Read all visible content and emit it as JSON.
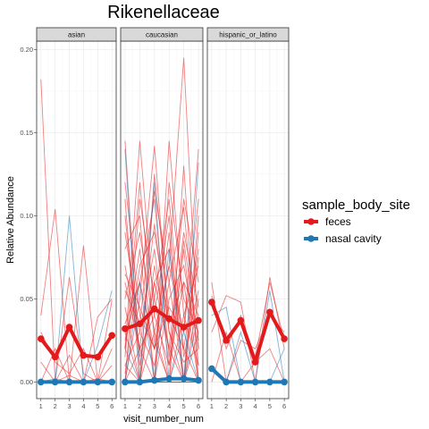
{
  "chart_data": {
    "type": "line",
    "title": "Rikenellaceae",
    "xlabel": "visit_number_num",
    "ylabel": "Relative Abundance",
    "x": [
      1,
      2,
      3,
      4,
      5,
      6
    ],
    "ylim": [
      -0.01,
      0.205
    ],
    "yticks": [
      0.0,
      0.05,
      0.1,
      0.15,
      0.2
    ],
    "ytick_labels": [
      "0.00",
      "0.05",
      "0.10",
      "0.15",
      "0.20"
    ],
    "xticks": [
      1,
      2,
      3,
      4,
      5,
      6
    ],
    "xtick_labels": [
      "1",
      "2",
      "3",
      "4",
      "5",
      "6"
    ],
    "grid": true,
    "legend_position": "right",
    "legend": {
      "title": "sample_body_site",
      "entries": [
        {
          "label": "feces",
          "color": "#e31a1c"
        },
        {
          "label": "nasal cavity",
          "color": "#1f78b4"
        }
      ]
    },
    "facets": [
      {
        "label": "asian",
        "mean_series": [
          {
            "name": "feces",
            "color": "#e31a1c",
            "values": [
              0.026,
              0.015,
              0.033,
              0.016,
              0.015,
              0.028
            ]
          },
          {
            "name": "nasal cavity",
            "color": "#1f78b4",
            "values": [
              0.0,
              0.0,
              0.0,
              0.0,
              0.0,
              0.0
            ]
          }
        ],
        "individual_series": [
          {
            "site": "feces",
            "values": [
              0.182,
              0.0,
              0.004,
              0.0,
              0.0,
              0.01
            ]
          },
          {
            "site": "feces",
            "values": [
              0.04,
              0.104,
              0.0,
              0.0,
              0.002,
              0.0
            ]
          },
          {
            "site": "feces",
            "values": [
              0.012,
              0.0,
              0.063,
              0.005,
              0.0,
              0.049
            ]
          },
          {
            "site": "feces",
            "values": [
              0.0,
              0.02,
              0.0,
              0.082,
              0.0,
              0.0
            ]
          },
          {
            "site": "feces",
            "values": [
              0.0,
              0.0,
              0.016,
              0.0,
              0.039,
              0.05
            ]
          },
          {
            "site": "feces",
            "values": [
              0.03,
              0.012,
              0.005,
              0.02,
              0.0,
              0.02
            ]
          },
          {
            "site": "nasal cavity",
            "values": [
              0.0,
              0.002,
              0.0,
              0.0,
              0.022,
              0.055
            ]
          },
          {
            "site": "nasal cavity",
            "values": [
              0.0,
              0.0,
              0.1,
              0.0,
              0.0,
              0.0
            ]
          }
        ]
      },
      {
        "label": "caucasian",
        "mean_series": [
          {
            "name": "feces",
            "color": "#e31a1c",
            "values": [
              0.032,
              0.035,
              0.044,
              0.038,
              0.033,
              0.037
            ]
          },
          {
            "name": "nasal cavity",
            "color": "#1f78b4",
            "values": [
              0.0,
              0.0,
              0.001,
              0.002,
              0.002,
              0.001
            ]
          }
        ],
        "individual_series": [
          {
            "site": "feces",
            "values": [
              0.145,
              0.01,
              0.06,
              0.02,
              0.0,
              0.03
            ]
          },
          {
            "site": "feces",
            "values": [
              0.02,
              0.145,
              0.04,
              0.01,
              0.08,
              0.0
            ]
          },
          {
            "site": "feces",
            "values": [
              0.0,
              0.05,
              0.142,
              0.03,
              0.012,
              0.02
            ]
          },
          {
            "site": "feces",
            "values": [
              0.06,
              0.02,
              0.0,
              0.145,
              0.04,
              0.01
            ]
          },
          {
            "site": "feces",
            "values": [
              0.01,
              0.0,
              0.03,
              0.07,
              0.195,
              0.02
            ]
          },
          {
            "site": "feces",
            "values": [
              0.035,
              0.06,
              0.02,
              0.045,
              0.03,
              0.14
            ]
          },
          {
            "site": "feces",
            "values": [
              0.09,
              0.03,
              0.08,
              0.01,
              0.06,
              0.04
            ]
          },
          {
            "site": "feces",
            "values": [
              0.12,
              0.04,
              0.02,
              0.09,
              0.0,
              0.05
            ]
          },
          {
            "site": "feces",
            "values": [
              0.0,
              0.11,
              0.05,
              0.0,
              0.13,
              0.0
            ]
          },
          {
            "site": "feces",
            "values": [
              0.045,
              0.0,
              0.125,
              0.04,
              0.02,
              0.08
            ]
          },
          {
            "site": "feces",
            "values": [
              0.02,
              0.08,
              0.0,
              0.12,
              0.05,
              0.03
            ]
          },
          {
            "site": "feces",
            "values": [
              0.07,
              0.02,
              0.095,
              0.03,
              0.0,
              0.1
            ]
          },
          {
            "site": "feces",
            "values": [
              0.01,
              0.03,
              0.01,
              0.06,
              0.105,
              0.01
            ]
          },
          {
            "site": "feces",
            "values": [
              0.05,
              0.09,
              0.03,
              0.0,
              0.04,
              0.07
            ]
          },
          {
            "site": "feces",
            "values": [
              0.11,
              0.0,
              0.06,
              0.08,
              0.02,
              0.0
            ]
          },
          {
            "site": "feces",
            "values": [
              0.025,
              0.06,
              0.11,
              0.015,
              0.09,
              0.045
            ]
          },
          {
            "site": "feces",
            "values": [
              0.0,
              0.02,
              0.04,
              0.1,
              0.0,
              0.09
            ]
          },
          {
            "site": "feces",
            "values": [
              0.08,
              0.1,
              0.0,
              0.05,
              0.07,
              0.02
            ]
          },
          {
            "site": "feces",
            "values": [
              0.03,
              0.0,
              0.07,
              0.02,
              0.11,
              0.06
            ]
          },
          {
            "site": "feces",
            "values": [
              0.065,
              0.045,
              0.02,
              0.07,
              0.03,
              0.11
            ]
          },
          {
            "site": "feces",
            "values": [
              0.005,
              0.07,
              0.09,
              0.035,
              0.06,
              0.0
            ]
          },
          {
            "site": "feces",
            "values": [
              0.1,
              0.015,
              0.05,
              0.11,
              0.015,
              0.055
            ]
          },
          {
            "site": "feces",
            "values": [
              0.015,
              0.12,
              0.025,
              0.0,
              0.085,
              0.025
            ]
          },
          {
            "site": "feces",
            "values": [
              0.055,
              0.035,
              0.115,
              0.06,
              0.0,
              0.075
            ]
          },
          {
            "site": "nasal cavity",
            "values": [
              0.14,
              0.0,
              0.0,
              0.0,
              0.0,
              0.0
            ]
          },
          {
            "site": "nasal cavity",
            "values": [
              0.0,
              0.0,
              0.12,
              0.0,
              0.0,
              0.0
            ]
          },
          {
            "site": "nasal cavity",
            "values": [
              0.0,
              0.0,
              0.0,
              0.0,
              0.0,
              0.132
            ]
          },
          {
            "site": "nasal cavity",
            "values": [
              0.0,
              0.06,
              0.0,
              0.0,
              0.03,
              0.0
            ]
          },
          {
            "site": "nasal cavity",
            "values": [
              0.0,
              0.0,
              0.0,
              0.08,
              0.0,
              0.0
            ]
          },
          {
            "site": "nasal cavity",
            "values": [
              0.02,
              0.0,
              0.0,
              0.0,
              0.0,
              0.04
            ]
          }
        ]
      },
      {
        "label": "hispanic_or_latino",
        "mean_series": [
          {
            "name": "feces",
            "color": "#e31a1c",
            "values": [
              0.048,
              0.025,
              0.037,
              0.012,
              0.042,
              0.026
            ]
          },
          {
            "name": "nasal cavity",
            "color": "#1f78b4",
            "values": [
              0.008,
              0.0,
              0.0,
              0.0,
              0.0,
              0.0
            ]
          }
        ],
        "individual_series": [
          {
            "site": "feces",
            "values": [
              0.03,
              0.052,
              0.048,
              0.0,
              0.063,
              0.02
            ]
          },
          {
            "site": "feces",
            "values": [
              0.06,
              0.0,
              0.025,
              0.02,
              0.04,
              0.03
            ]
          },
          {
            "site": "feces",
            "values": [
              0.052,
              0.02,
              0.04,
              0.015,
              0.06,
              0.025
            ]
          },
          {
            "site": "feces",
            "values": [
              0.0,
              0.03,
              0.0,
              0.012,
              0.02,
              0.0
            ]
          },
          {
            "site": "nasal cavity",
            "values": [
              0.04,
              0.045,
              0.0,
              0.0,
              0.055,
              0.0
            ]
          },
          {
            "site": "nasal cavity",
            "values": [
              0.01,
              0.0,
              0.03,
              0.0,
              0.0,
              0.02
            ]
          }
        ]
      }
    ]
  }
}
